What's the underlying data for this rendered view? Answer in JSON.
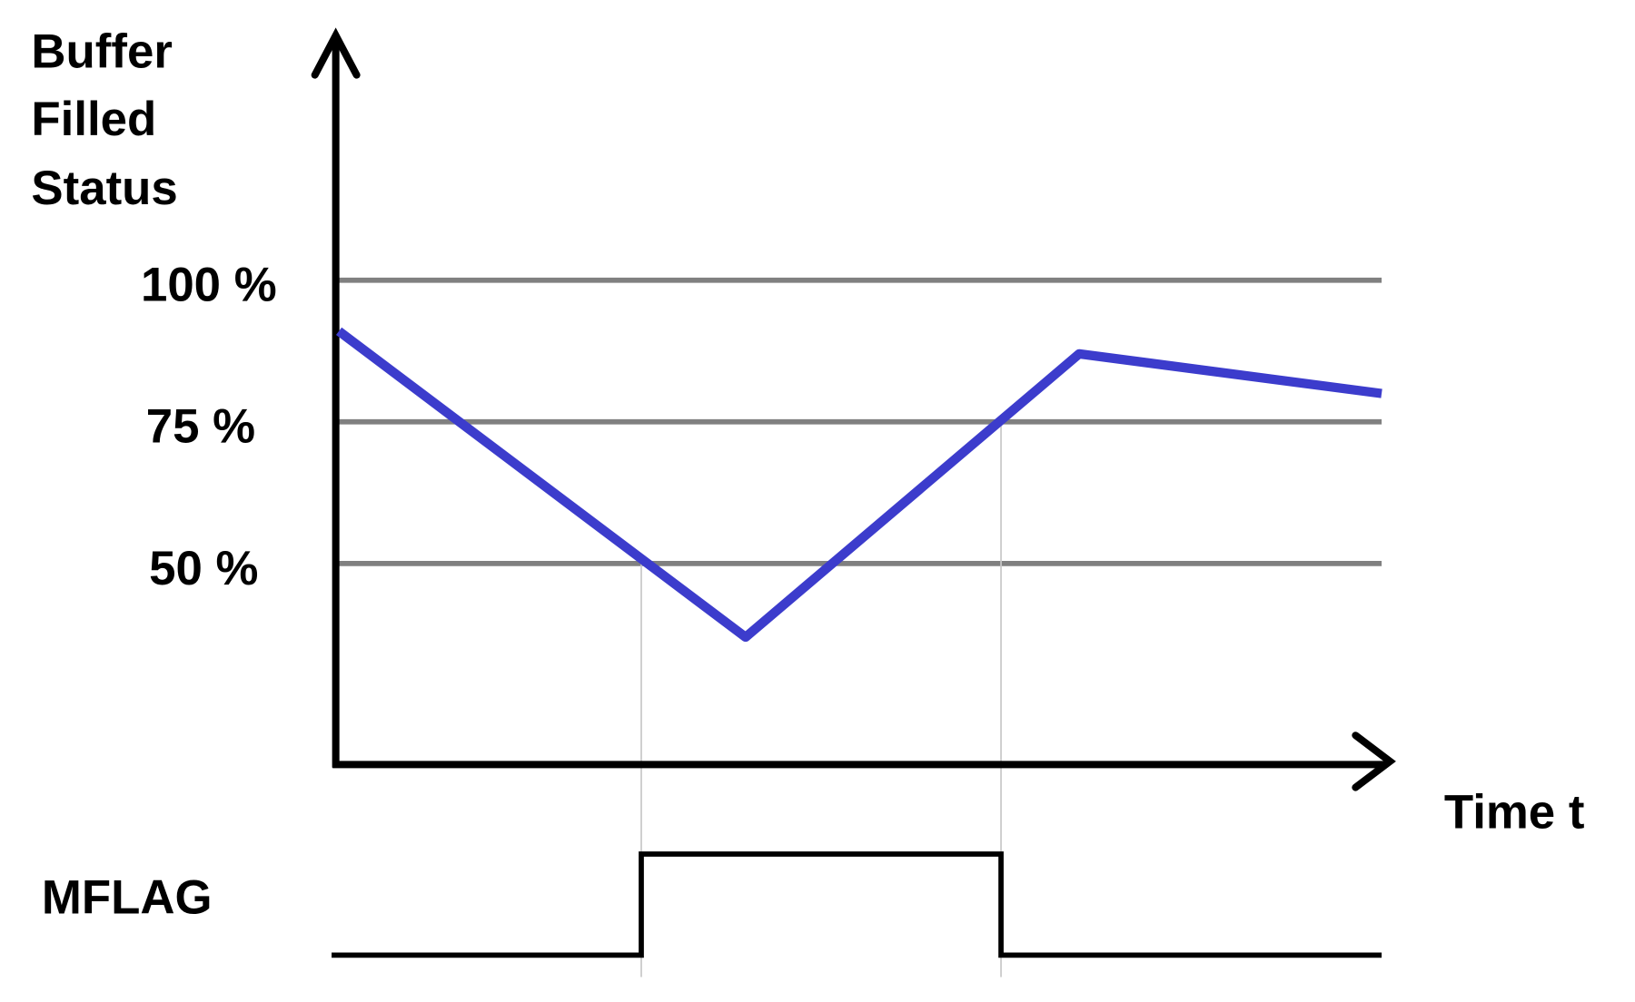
{
  "y_axis_label": [
    "Buffer",
    "Filled",
    "Status"
  ],
  "x_axis_label": "Time t",
  "signal_label": "MFLAG",
  "levels": [
    {
      "label": "100 %",
      "value": 100
    },
    {
      "label": "75 %",
      "value": 75
    },
    {
      "label": "50 %",
      "value": 50
    }
  ],
  "colors": {
    "buffer_line": "#3c3ccc",
    "gridline": "#808080",
    "axis": "#000000"
  },
  "chart_data": {
    "type": "line",
    "buffer_fill_percent": [
      {
        "t": 0,
        "value": 91
      },
      {
        "t": 0.39,
        "value": 37
      },
      {
        "t": 0.71,
        "value": 87
      },
      {
        "t": 1.0,
        "value": 80
      }
    ],
    "mflag": [
      {
        "t": 0,
        "state": 0
      },
      {
        "t": 0.29,
        "state": 1
      },
      {
        "t": 0.635,
        "state": 0
      },
      {
        "t": 1.0,
        "state": 0
      }
    ]
  }
}
